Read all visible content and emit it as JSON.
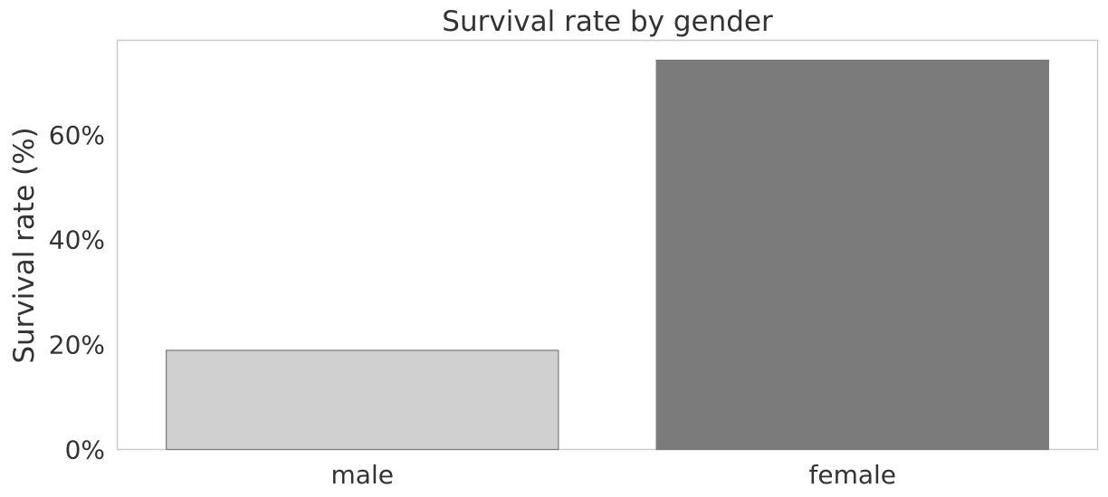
{
  "chart_data": {
    "type": "bar",
    "title": "Survival rate by gender",
    "xlabel": "",
    "ylabel": "Survival rate (%)",
    "categories": [
      "male",
      "female"
    ],
    "values": [
      18.9,
      74.2
    ],
    "ylim": [
      0,
      78
    ],
    "yticks": [
      0,
      20,
      40,
      60
    ],
    "ytick_labels": [
      "0%",
      "20%",
      "40%",
      "60%"
    ],
    "bar_colors": [
      "#d0d0d0",
      "#7b7b7b"
    ],
    "grid": false,
    "legend": "none"
  }
}
